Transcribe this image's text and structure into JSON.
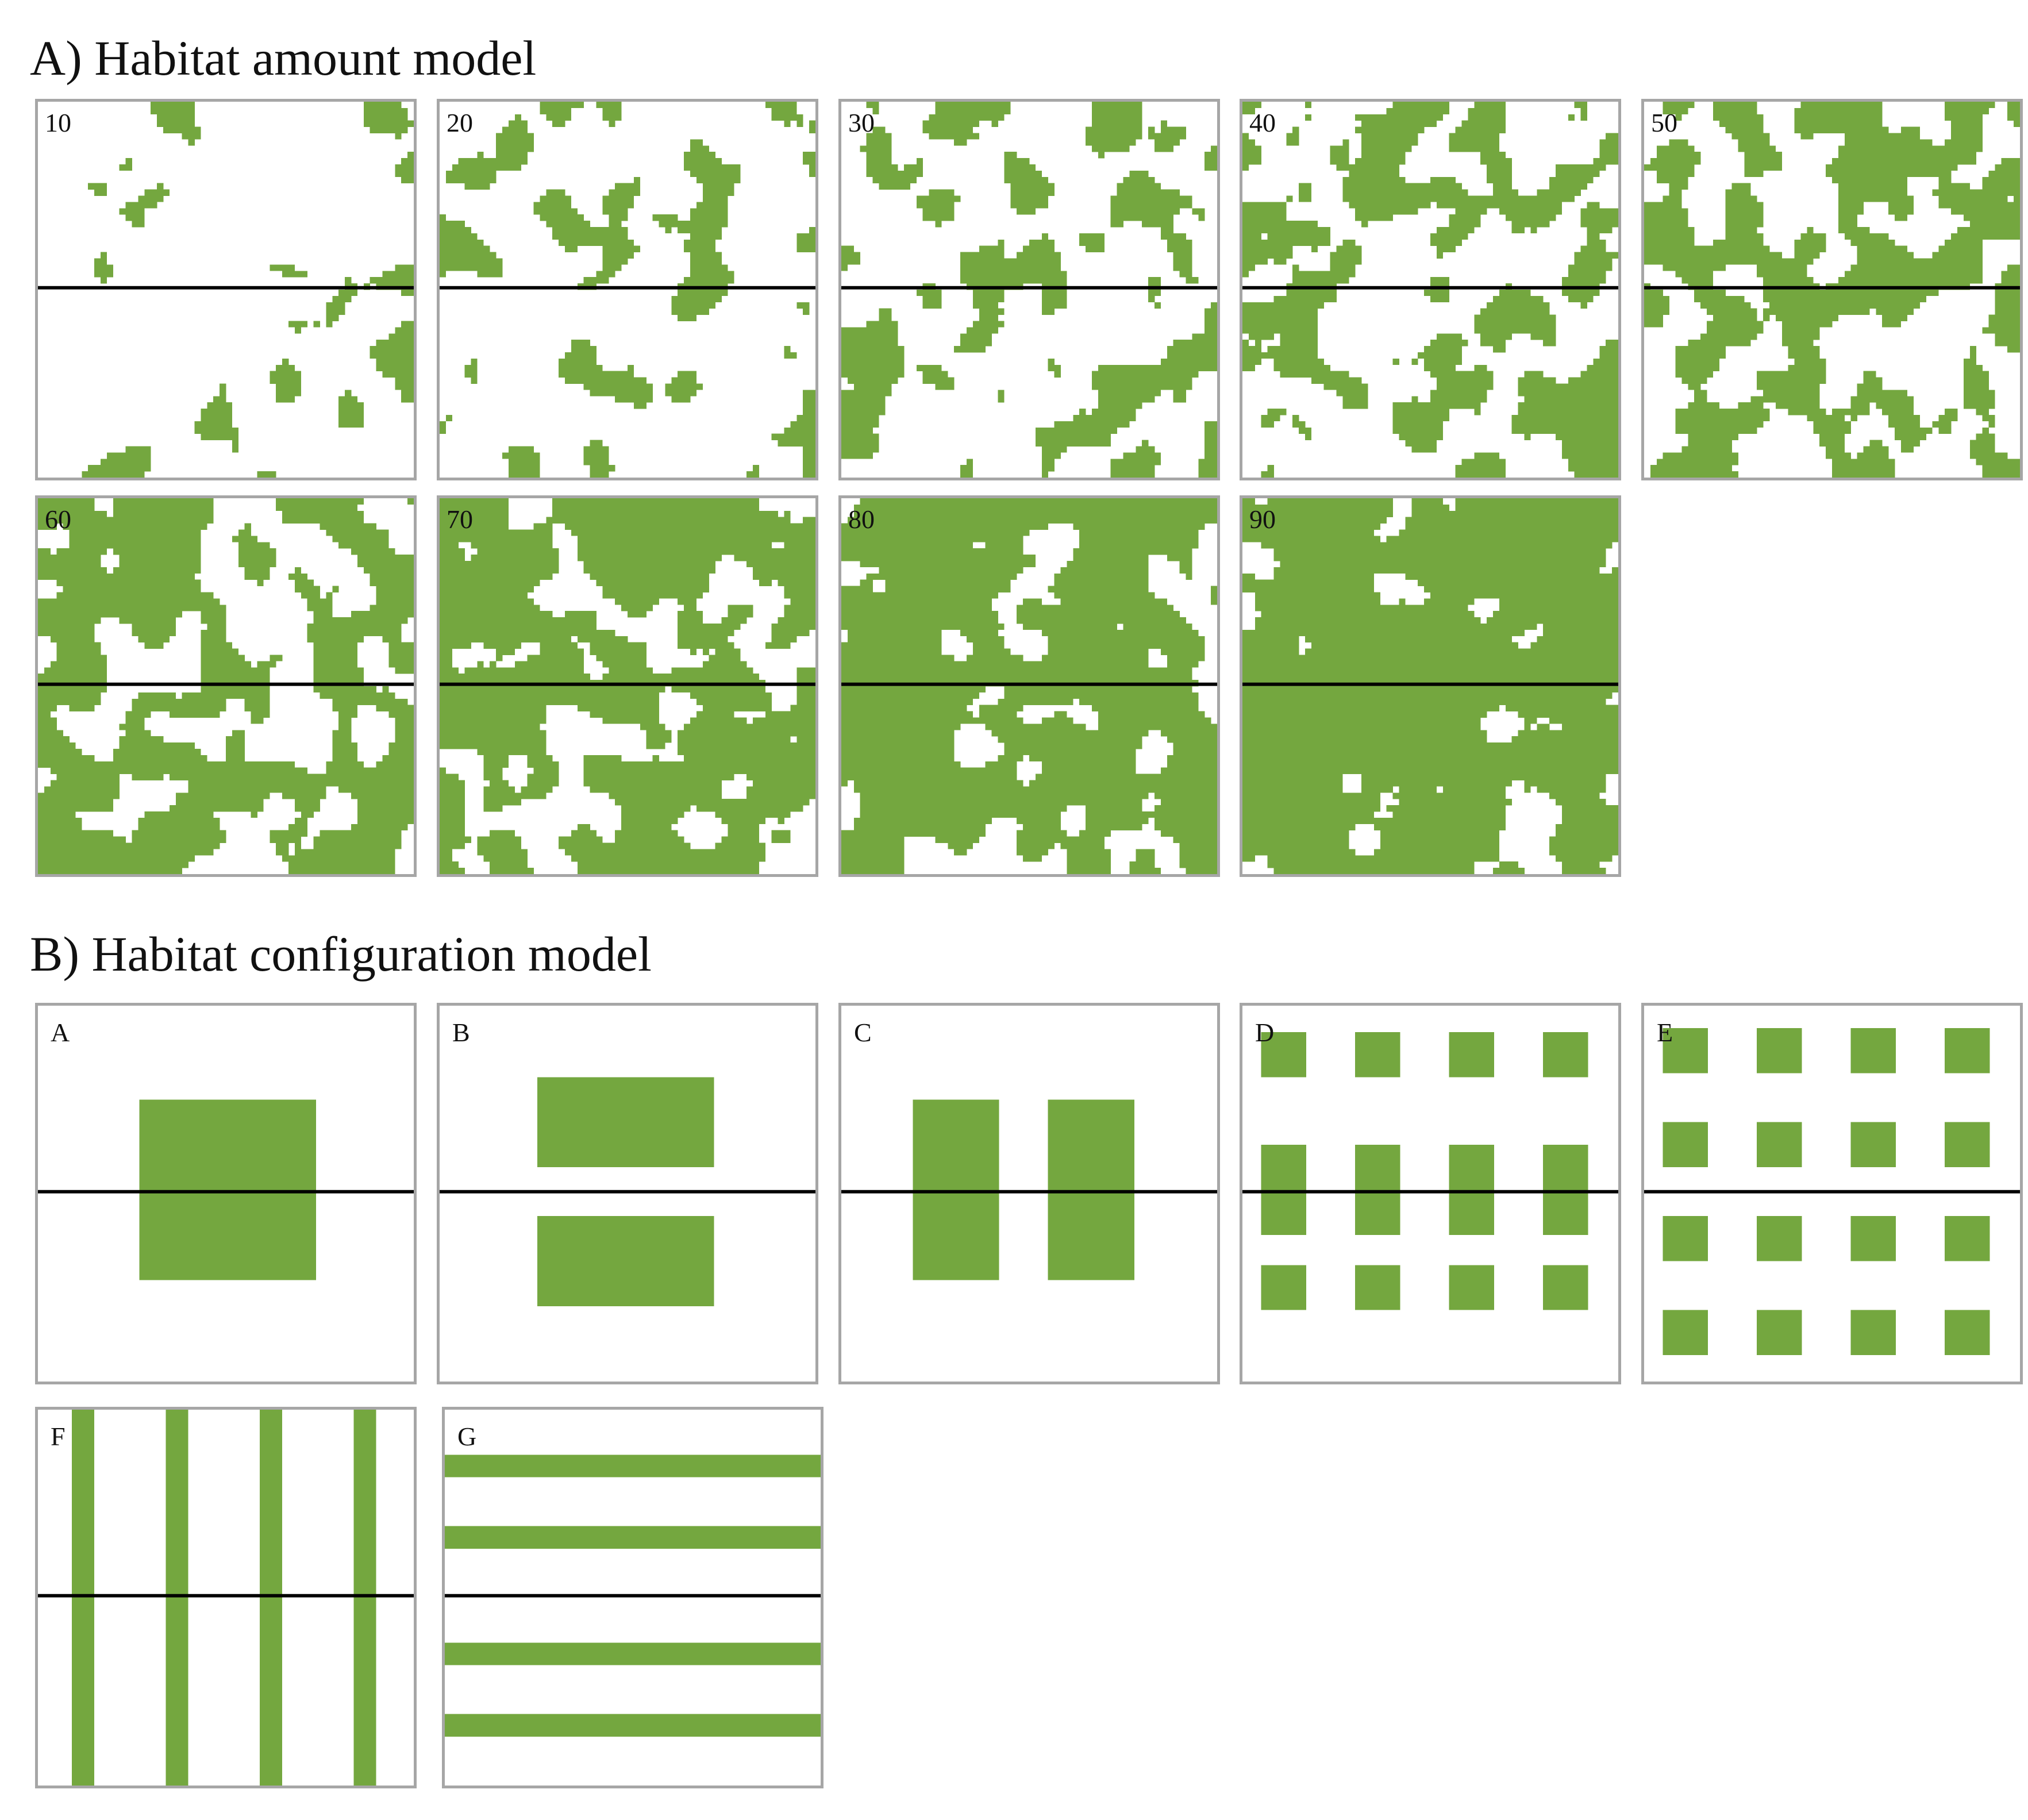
{
  "colors": {
    "habitat": "#74a73f",
    "background": "#ffffff",
    "transect": "#000000",
    "frame": "#a6a6a6"
  },
  "section_a": {
    "title": "A) Habitat amount model",
    "panels": [
      {
        "label": "10",
        "habitat_percent": 10
      },
      {
        "label": "20",
        "habitat_percent": 20
      },
      {
        "label": "30",
        "habitat_percent": 30
      },
      {
        "label": "40",
        "habitat_percent": 40
      },
      {
        "label": "50",
        "habitat_percent": 50
      },
      {
        "label": "60",
        "habitat_percent": 60
      },
      {
        "label": "70",
        "habitat_percent": 70
      },
      {
        "label": "80",
        "habitat_percent": 80
      },
      {
        "label": "90",
        "habitat_percent": 90
      }
    ]
  },
  "section_b": {
    "title": "B) Habitat configuration model",
    "panels": [
      {
        "label": "A",
        "pattern": "single central block"
      },
      {
        "label": "B",
        "pattern": "two horizontal blocks"
      },
      {
        "label": "C",
        "pattern": "two vertical blocks"
      },
      {
        "label": "D",
        "pattern": "4 x 3 grid of patches"
      },
      {
        "label": "E",
        "pattern": "4 x 4 grid of patches"
      },
      {
        "label": "F",
        "pattern": "four vertical strips"
      },
      {
        "label": "G",
        "pattern": "four horizontal strips"
      }
    ]
  }
}
